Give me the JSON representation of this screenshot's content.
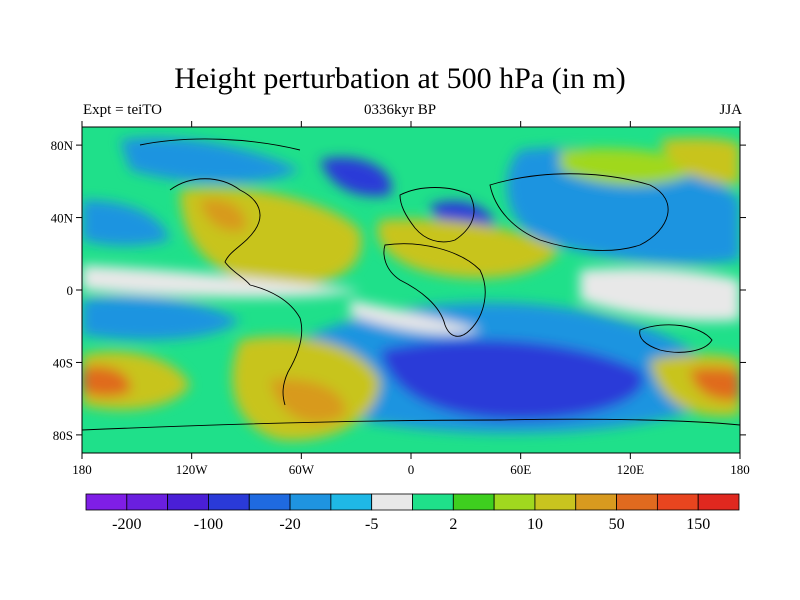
{
  "title": "Height perturbation at 500 hPa (in m)",
  "subtitle_left": "Expt = teiTO",
  "subtitle_center": "0336kyr BP",
  "subtitle_right": "JJA",
  "lon_ticks": [
    {
      "lon": -180,
      "label": "180"
    },
    {
      "lon": -120,
      "label": "120W"
    },
    {
      "lon": -60,
      "label": "60W"
    },
    {
      "lon": 0,
      "label": "0"
    },
    {
      "lon": 60,
      "label": "60E"
    },
    {
      "lon": 120,
      "label": "120E"
    },
    {
      "lon": 180,
      "label": "180"
    }
  ],
  "lat_ticks": [
    {
      "lat": 80,
      "label": "80N"
    },
    {
      "lat": 40,
      "label": "40N"
    },
    {
      "lat": 0,
      "label": "0"
    },
    {
      "lat": -40,
      "label": "40S"
    },
    {
      "lat": -80,
      "label": "80S"
    }
  ],
  "colorbar": {
    "colors": [
      "#7f1ee6",
      "#6a1fdf",
      "#4a1fd6",
      "#2a3ad8",
      "#1f6ae0",
      "#1f94e0",
      "#1fb8e6",
      "#e8e8e8",
      "#1fe08a",
      "#3ecf1f",
      "#a0d81f",
      "#c8c41f",
      "#d89a1f",
      "#e06a1f",
      "#e8451f",
      "#e0281f"
    ],
    "labels": [
      {
        "after_box": 1,
        "text": "-200"
      },
      {
        "after_box": 3,
        "text": "-100"
      },
      {
        "after_box": 5,
        "text": "-20"
      },
      {
        "after_box": 7,
        "text": "-5"
      },
      {
        "after_box": 9,
        "text": "2"
      },
      {
        "after_box": 11,
        "text": "10"
      },
      {
        "after_box": 13,
        "text": "50"
      },
      {
        "after_box": 15,
        "text": "150"
      }
    ]
  }
}
